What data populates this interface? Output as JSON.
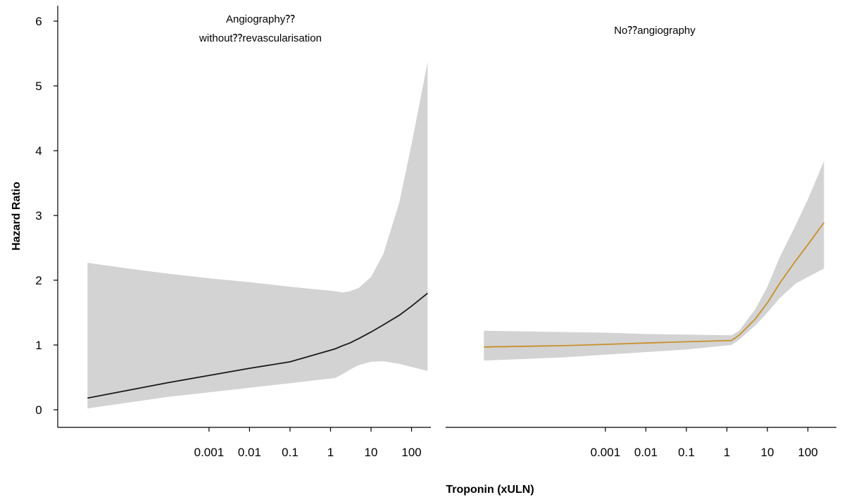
{
  "chart_data": {
    "type": "line",
    "xlabel": "Troponin (xULN)",
    "ylabel": "Hazard Ratio",
    "x_scale": "log",
    "x_ticks": [
      0.001,
      0.01,
      0.1,
      1,
      10,
      100
    ],
    "x_tick_labels": [
      "0.001",
      "0.01",
      "0.1",
      "1",
      "10",
      "100"
    ],
    "xlim": [
      5e-07,
      300
    ],
    "ylim": [
      -0.25,
      6.25
    ],
    "y_ticks": [
      0,
      1,
      2,
      3,
      4,
      5,
      6
    ],
    "y_tick_labels": [
      "0",
      "1",
      "2",
      "3",
      "4",
      "5",
      "6"
    ],
    "grid": false,
    "legend": "none",
    "panels": [
      {
        "title_lines": [
          "Angiography⁇",
          "without⁇revascularisation"
        ],
        "line_color": "#1a1a1a",
        "band_color": "#d3d3d3",
        "x": [
          1e-06,
          1e-05,
          0.0001,
          0.001,
          0.01,
          0.1,
          1.3,
          2,
          3,
          5,
          10,
          20,
          50,
          100,
          250
        ],
        "estimate": [
          0.18,
          0.3,
          0.42,
          0.53,
          0.64,
          0.74,
          0.94,
          0.99,
          1.03,
          1.1,
          1.2,
          1.31,
          1.46,
          1.6,
          1.8
        ],
        "lower": [
          0.02,
          0.11,
          0.2,
          0.27,
          0.34,
          0.41,
          0.49,
          0.55,
          0.62,
          0.69,
          0.74,
          0.75,
          0.71,
          0.66,
          0.6
        ],
        "upper": [
          2.27,
          2.18,
          2.1,
          2.03,
          1.97,
          1.9,
          1.83,
          1.81,
          1.83,
          1.88,
          2.05,
          2.4,
          3.2,
          4.1,
          5.37
        ]
      },
      {
        "title_lines": [
          "No⁇angiography"
        ],
        "line_color": "#c8902a",
        "band_color": "#d3d3d3",
        "x": [
          1e-06,
          0.0001,
          0.001,
          0.01,
          0.1,
          1.3,
          2,
          5,
          10,
          20,
          50,
          100,
          250
        ],
        "estimate": [
          0.97,
          0.99,
          1.01,
          1.03,
          1.05,
          1.07,
          1.15,
          1.4,
          1.65,
          1.95,
          2.3,
          2.55,
          2.89
        ],
        "lower": [
          0.76,
          0.81,
          0.85,
          0.89,
          0.93,
          1.0,
          1.08,
          1.3,
          1.5,
          1.72,
          1.95,
          2.05,
          2.18
        ],
        "upper": [
          1.22,
          1.2,
          1.19,
          1.17,
          1.16,
          1.15,
          1.22,
          1.55,
          1.9,
          2.35,
          2.85,
          3.25,
          3.84
        ]
      }
    ]
  }
}
